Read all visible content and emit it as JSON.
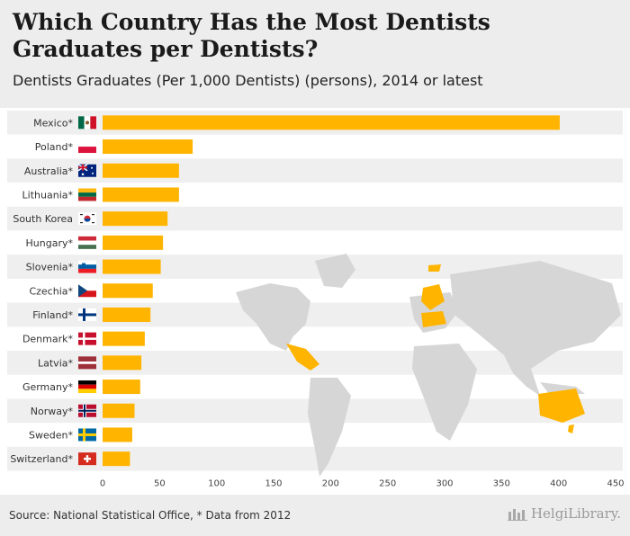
{
  "header": {
    "title": "Which Country Has the Most Dentists Graduates per Dentists?",
    "subtitle": "Dentists Graduates (Per 1,000 Dentists) (persons), 2014 or latest"
  },
  "footer": {
    "source": "Source: National Statistical Office, * Data from 2012",
    "brand": "HelgiLibrary."
  },
  "colors": {
    "bar": "#ffb400",
    "stripe": "#efefef",
    "map": "#d6d6d6",
    "highlight": "#ffb400"
  },
  "chart_data": {
    "type": "bar",
    "orientation": "horizontal",
    "categories": [
      "Mexico*",
      "Poland*",
      "Australia*",
      "Lithuania*",
      "South Korea",
      "Hungary*",
      "Slovenia*",
      "Czechia*",
      "Finland*",
      "Denmark*",
      "Latvia*",
      "Germany*",
      "Norway*",
      "Sweden*",
      "Switzerland*"
    ],
    "flags": [
      "mx",
      "pl",
      "au",
      "lt",
      "kr",
      "hu",
      "si",
      "cz",
      "fi",
      "dk",
      "lv",
      "de",
      "no",
      "se",
      "ch"
    ],
    "values": [
      401,
      79,
      67,
      67,
      57,
      53,
      51,
      44,
      42,
      37,
      34,
      33,
      28,
      26,
      24
    ],
    "xlim": [
      0,
      450
    ],
    "xticks": [
      0,
      50,
      100,
      150,
      200,
      250,
      300,
      350,
      400,
      450
    ],
    "title": "Dentists Graduates (Per 1,000 Dentists) (persons), 2014 or latest",
    "xlabel": "",
    "ylabel": ""
  }
}
